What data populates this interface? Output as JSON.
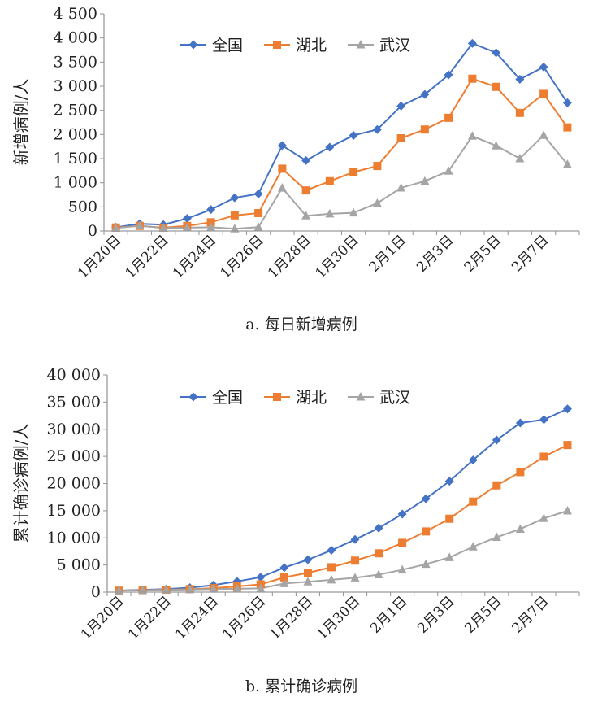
{
  "chart_data": [
    {
      "type": "line",
      "caption": "a. 每日新增病例",
      "ylabel": "新增病例/人",
      "ylim": [
        0,
        4500
      ],
      "yticks": [
        "0",
        "500",
        "1 000",
        "1 500",
        "2 000",
        "2 500",
        "3 000",
        "3 500",
        "4 000",
        "4 500"
      ],
      "x": [
        "1月20日",
        "1月21日",
        "1月22日",
        "1月23日",
        "1月24日",
        "1月25日",
        "1月26日",
        "1月27日",
        "1月28日",
        "1月29日",
        "1月30日",
        "1月31日",
        "2月1日",
        "2月2日",
        "2月3日",
        "2月4日",
        "2月5日",
        "2月6日",
        "2月7日",
        "2月8日"
      ],
      "xtick_labels": [
        "1月20日",
        "1月22日",
        "1月24日",
        "1月26日",
        "1月28日",
        "1月30日",
        "2月1日",
        "2月3日",
        "2月5日",
        "2月7日"
      ],
      "legend_position": "top",
      "grid": false,
      "series": [
        {
          "name": "全国",
          "color": "#4472c4",
          "marker": "diamond",
          "values": [
            77,
            149,
            131,
            259,
            444,
            688,
            769,
            1771,
            1459,
            1737,
            1981,
            2102,
            2590,
            2829,
            3235,
            3887,
            3694,
            3143,
            3399,
            2656
          ]
        },
        {
          "name": "湖北",
          "color": "#ed7d31",
          "marker": "square",
          "values": [
            72,
            105,
            69,
            105,
            180,
            323,
            371,
            1291,
            840,
            1032,
            1220,
            1347,
            1921,
            2103,
            2345,
            3156,
            2987,
            2447,
            2841,
            2147
          ]
        },
        {
          "name": "武汉",
          "color": "#a5a5a5",
          "marker": "triangle",
          "values": [
            60,
            110,
            62,
            70,
            77,
            46,
            80,
            892,
            315,
            356,
            378,
            576,
            894,
            1033,
            1242,
            1967,
            1766,
            1501,
            1985,
            1379
          ]
        }
      ]
    },
    {
      "type": "line",
      "caption": "b. 累计确诊病例",
      "ylabel": "累计确诊病例/人",
      "ylim": [
        0,
        40000
      ],
      "yticks": [
        "0",
        "5 000",
        "10 000",
        "15 000",
        "20 000",
        "25 000",
        "30 000",
        "35 000",
        "40 000"
      ],
      "x": [
        "1月20日",
        "1月21日",
        "1月22日",
        "1月23日",
        "1月24日",
        "1月25日",
        "1月26日",
        "1月27日",
        "1月28日",
        "1月29日",
        "1月30日",
        "1月31日",
        "2月1日",
        "2月2日",
        "2月3日",
        "2月4日",
        "2月5日",
        "2月6日",
        "2月7日",
        "2月8日"
      ],
      "xtick_labels": [
        "1月20日",
        "1月22日",
        "1月24日",
        "1月26日",
        "1月28日",
        "1月30日",
        "2月1日",
        "2月3日",
        "2月5日",
        "2月7日"
      ],
      "legend_position": "top",
      "grid": false,
      "series": [
        {
          "name": "全国",
          "color": "#4472c4",
          "marker": "diamond",
          "values": [
            291,
            440,
            571,
            830,
            1287,
            1975,
            2744,
            4515,
            5974,
            7711,
            9692,
            11791,
            14380,
            17205,
            20438,
            24324,
            28018,
            31161,
            31774,
            33738
          ]
        },
        {
          "name": "湖北",
          "color": "#ed7d31",
          "marker": "square",
          "values": [
            270,
            375,
            444,
            549,
            729,
            1052,
            1423,
            2714,
            3554,
            4586,
            5806,
            7153,
            9074,
            11177,
            13522,
            16678,
            19665,
            22112,
            24953,
            27100
          ]
        },
        {
          "name": "武汉",
          "color": "#a5a5a5",
          "marker": "triangle",
          "values": [
            258,
            363,
            425,
            495,
            572,
            618,
            698,
            1590,
            1905,
            2261,
            2639,
            3215,
            4109,
            5142,
            6384,
            8351,
            10117,
            11618,
            13603,
            14982
          ]
        }
      ]
    }
  ]
}
